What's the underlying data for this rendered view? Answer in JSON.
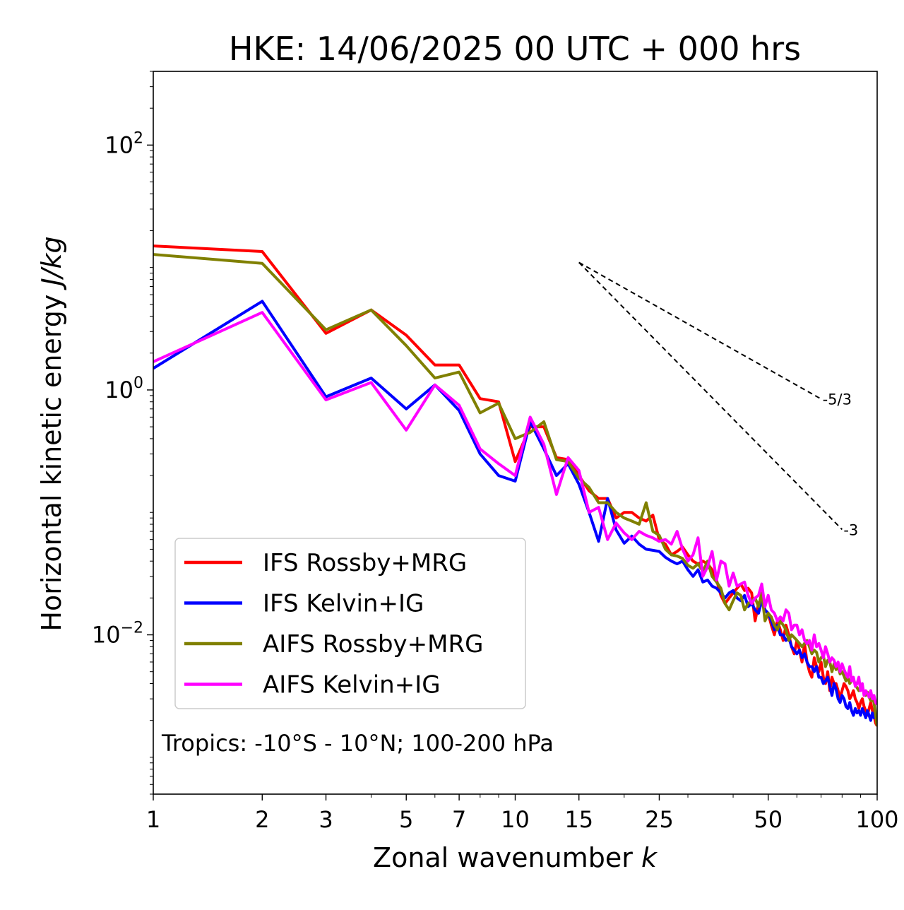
{
  "chart_data": {
    "type": "line",
    "title": "HKE: 14/06/2025 00 UTC + 000 hrs",
    "xlabel": "Zonal wavenumber",
    "xlabel_var": "k",
    "ylabel": "Horizontal kinetic energy",
    "ylabel_unit": "J/kg",
    "x_scale": "log",
    "y_scale": "log",
    "xlim": [
      1,
      100
    ],
    "ylim": [
      0.0005,
      400
    ],
    "grid": false,
    "legend_position": "lower-left",
    "x_ticks": [
      1,
      2,
      3,
      5,
      7,
      10,
      15,
      25,
      50,
      100
    ],
    "y_ticks": [
      {
        "value": 100,
        "base": "10",
        "exp": "2"
      },
      {
        "value": 1,
        "base": "10",
        "exp": "0"
      },
      {
        "value": 0.01,
        "base": "10",
        "exp": "−2"
      }
    ],
    "annotation": "Tropics: -10°S - 10°N; 100-200 hPa",
    "reference_slopes": [
      {
        "label": "-5/3",
        "slope": -1.6667,
        "x0": 15,
        "y0": 11,
        "x1": 70
      },
      {
        "label": "-3",
        "slope": -3,
        "x0": 15,
        "y0": 11,
        "x1": 80
      }
    ],
    "series": [
      {
        "name": "IFS Rossby+MRG",
        "color": "#ff0000",
        "x": [
          1,
          2,
          3,
          4,
          5,
          6,
          7,
          8,
          9,
          10,
          11,
          12,
          13,
          14,
          15,
          16,
          17,
          18,
          19,
          20,
          21,
          22,
          23,
          24,
          25,
          26,
          27,
          28,
          29,
          30,
          31,
          32,
          33,
          34,
          35,
          36,
          37,
          38,
          39,
          40,
          41,
          42,
          43,
          44,
          45,
          46,
          47,
          48,
          49,
          50,
          51,
          52,
          53,
          54,
          55,
          56,
          57,
          58,
          59,
          60,
          61,
          62,
          63,
          64,
          65,
          66,
          67,
          68,
          69,
          70,
          71,
          72,
          73,
          74,
          75,
          76,
          77,
          78,
          79,
          80,
          81,
          82,
          83,
          84,
          85,
          86,
          87,
          88,
          89,
          90,
          91,
          92,
          93,
          94,
          95,
          96,
          97,
          98,
          99,
          100
        ],
        "y": [
          15,
          13.5,
          2.9,
          4.5,
          2.8,
          1.6,
          1.6,
          0.85,
          0.8,
          0.26,
          0.5,
          0.5,
          0.28,
          0.27,
          0.2,
          0.15,
          0.13,
          0.13,
          0.09,
          0.1,
          0.1,
          0.09,
          0.085,
          0.095,
          0.06,
          0.055,
          0.045,
          0.048,
          0.052,
          0.045,
          0.04,
          0.038,
          0.04,
          0.038,
          0.034,
          0.028,
          0.021,
          0.018,
          0.02,
          0.022,
          0.024,
          0.026,
          0.023,
          0.024,
          0.022,
          0.013,
          0.018,
          0.02,
          0.016,
          0.015,
          0.012,
          0.01,
          0.013,
          0.011,
          0.009,
          0.012,
          0.01,
          0.008,
          0.007,
          0.009,
          0.0075,
          0.006,
          0.0085,
          0.006,
          0.005,
          0.0045,
          0.0065,
          0.0055,
          0.005,
          0.006,
          0.0045,
          0.004,
          0.005,
          0.0035,
          0.0045,
          0.004,
          0.004,
          0.0035,
          0.003,
          0.0035,
          0.004,
          0.0038,
          0.0035,
          0.003,
          0.0032,
          0.0035,
          0.003,
          0.0028,
          0.0025,
          0.0028,
          0.003,
          0.0026,
          0.0024,
          0.0022,
          0.0025,
          0.0028,
          0.0024,
          0.0022,
          0.0019,
          0.0018
        ]
      },
      {
        "name": "IFS Kelvin+IG",
        "color": "#0000ff",
        "x": [
          1,
          2,
          3,
          4,
          5,
          6,
          7,
          8,
          9,
          10,
          11,
          12,
          13,
          14,
          15,
          16,
          17,
          18,
          19,
          20,
          21,
          22,
          23,
          24,
          25,
          26,
          27,
          28,
          29,
          30,
          31,
          32,
          33,
          34,
          35,
          36,
          37,
          38,
          39,
          40,
          41,
          42,
          43,
          44,
          45,
          46,
          47,
          48,
          49,
          50,
          51,
          52,
          53,
          54,
          55,
          56,
          57,
          58,
          59,
          60,
          61,
          62,
          63,
          64,
          65,
          66,
          67,
          68,
          69,
          70,
          71,
          72,
          73,
          74,
          75,
          76,
          77,
          78,
          79,
          80,
          81,
          82,
          83,
          84,
          85,
          86,
          87,
          88,
          89,
          90,
          91,
          92,
          93,
          94,
          95,
          96,
          97,
          98,
          99,
          100
        ],
        "y": [
          1.5,
          5.3,
          0.88,
          1.25,
          0.7,
          1.1,
          0.68,
          0.3,
          0.2,
          0.18,
          0.55,
          0.33,
          0.2,
          0.25,
          0.17,
          0.1,
          0.058,
          0.13,
          0.072,
          0.056,
          0.064,
          0.055,
          0.05,
          0.049,
          0.048,
          0.043,
          0.04,
          0.038,
          0.04,
          0.034,
          0.03,
          0.034,
          0.027,
          0.028,
          0.025,
          0.024,
          0.022,
          0.02,
          0.022,
          0.023,
          0.02,
          0.019,
          0.021,
          0.017,
          0.018,
          0.016,
          0.015,
          0.019,
          0.016,
          0.015,
          0.013,
          0.011,
          0.012,
          0.01,
          0.01,
          0.009,
          0.0095,
          0.008,
          0.0075,
          0.007,
          0.0075,
          0.0065,
          0.007,
          0.006,
          0.0055,
          0.0055,
          0.005,
          0.0055,
          0.0045,
          0.0045,
          0.004,
          0.0042,
          0.0045,
          0.0038,
          0.0032,
          0.004,
          0.0036,
          0.003,
          0.0028,
          0.0032,
          0.003,
          0.0026,
          0.0025,
          0.0028,
          0.0024,
          0.0022,
          0.0025,
          0.0023,
          0.0024,
          0.0022,
          0.0025,
          0.0023,
          0.0021,
          0.0024,
          0.0022,
          0.002,
          0.0023,
          0.0021,
          0.0022,
          0.0021
        ]
      },
      {
        "name": "AIFS Rossby+MRG",
        "color": "#808000",
        "x": [
          1,
          2,
          3,
          4,
          5,
          6,
          7,
          8,
          9,
          10,
          11,
          12,
          13,
          14,
          15,
          16,
          17,
          18,
          19,
          20,
          21,
          22,
          23,
          24,
          25,
          26,
          27,
          28,
          29,
          30,
          31,
          32,
          33,
          34,
          35,
          36,
          37,
          38,
          39,
          40,
          41,
          42,
          43,
          44,
          45,
          46,
          47,
          48,
          49,
          50,
          51,
          52,
          53,
          54,
          55,
          56,
          57,
          58,
          59,
          60,
          61,
          62,
          63,
          64,
          65,
          66,
          67,
          68,
          69,
          70,
          71,
          72,
          73,
          74,
          75,
          76,
          77,
          78,
          79,
          80,
          81,
          82,
          83,
          84,
          85,
          86,
          87,
          88,
          89,
          90,
          91,
          92,
          93,
          94,
          95,
          96,
          97,
          98,
          99,
          100
        ],
        "y": [
          12.8,
          10.8,
          3.1,
          4.5,
          2.3,
          1.25,
          1.4,
          0.65,
          0.78,
          0.4,
          0.45,
          0.55,
          0.27,
          0.26,
          0.19,
          0.16,
          0.12,
          0.12,
          0.1,
          0.09,
          0.085,
          0.08,
          0.12,
          0.07,
          0.065,
          0.05,
          0.045,
          0.044,
          0.042,
          0.037,
          0.035,
          0.038,
          0.033,
          0.04,
          0.03,
          0.027,
          0.024,
          0.018,
          0.016,
          0.019,
          0.022,
          0.021,
          0.016,
          0.018,
          0.019,
          0.02,
          0.017,
          0.022,
          0.013,
          0.015,
          0.014,
          0.012,
          0.011,
          0.013,
          0.012,
          0.011,
          0.009,
          0.01,
          0.0095,
          0.009,
          0.0085,
          0.008,
          0.0085,
          0.009,
          0.008,
          0.007,
          0.0075,
          0.0072,
          0.006,
          0.0065,
          0.0068,
          0.0055,
          0.0062,
          0.006,
          0.005,
          0.0058,
          0.0052,
          0.0055,
          0.0048,
          0.005,
          0.0046,
          0.0042,
          0.0045,
          0.004,
          0.0042,
          0.0044,
          0.0039,
          0.0037,
          0.0035,
          0.0038,
          0.0036,
          0.0034,
          0.0032,
          0.0034,
          0.0031,
          0.0029,
          0.003,
          0.0028,
          0.0022,
          0.0018
        ]
      },
      {
        "name": "AIFS Kelvin+IG",
        "color": "#ff00ff",
        "x": [
          1,
          2,
          3,
          4,
          5,
          6,
          7,
          8,
          9,
          10,
          11,
          12,
          13,
          14,
          15,
          16,
          17,
          18,
          19,
          20,
          21,
          22,
          23,
          24,
          25,
          26,
          27,
          28,
          29,
          30,
          31,
          32,
          33,
          34,
          35,
          36,
          37,
          38,
          39,
          40,
          41,
          42,
          43,
          44,
          45,
          46,
          47,
          48,
          49,
          50,
          51,
          52,
          53,
          54,
          55,
          56,
          57,
          58,
          59,
          60,
          61,
          62,
          63,
          64,
          65,
          66,
          67,
          68,
          69,
          70,
          71,
          72,
          73,
          74,
          75,
          76,
          77,
          78,
          79,
          80,
          81,
          82,
          83,
          84,
          85,
          86,
          87,
          88,
          89,
          90,
          91,
          92,
          93,
          94,
          95,
          96,
          97,
          98,
          99,
          100
        ],
        "y": [
          1.7,
          4.3,
          0.83,
          1.15,
          0.47,
          1.1,
          0.75,
          0.33,
          0.25,
          0.2,
          0.6,
          0.36,
          0.14,
          0.28,
          0.22,
          0.1,
          0.11,
          0.06,
          0.082,
          0.068,
          0.06,
          0.07,
          0.065,
          0.062,
          0.058,
          0.06,
          0.055,
          0.07,
          0.05,
          0.04,
          0.045,
          0.062,
          0.03,
          0.036,
          0.048,
          0.028,
          0.04,
          0.038,
          0.025,
          0.032,
          0.025,
          0.026,
          0.027,
          0.021,
          0.018,
          0.02,
          0.021,
          0.026,
          0.017,
          0.021,
          0.016,
          0.015,
          0.013,
          0.014,
          0.013,
          0.016,
          0.015,
          0.011,
          0.012,
          0.012,
          0.01,
          0.011,
          0.009,
          0.0085,
          0.009,
          0.0075,
          0.01,
          0.008,
          0.0085,
          0.0075,
          0.0065,
          0.008,
          0.007,
          0.006,
          0.0065,
          0.0062,
          0.0055,
          0.006,
          0.005,
          0.0058,
          0.0052,
          0.0048,
          0.0045,
          0.0055,
          0.0042,
          0.0045,
          0.0038,
          0.004,
          0.0045,
          0.0035,
          0.004,
          0.0032,
          0.0035,
          0.0033,
          0.0031,
          0.0035,
          0.003,
          0.0032,
          0.0028,
          0.0027
        ]
      }
    ]
  }
}
